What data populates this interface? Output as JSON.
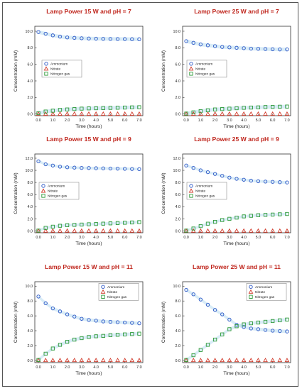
{
  "colors": {
    "title": "#c0271e",
    "ammonium": "#2a56c6",
    "nitrate": "#d13a2a",
    "nitrogen_gas": "#2e9a38",
    "band": "#b9dcf0"
  },
  "chart_data": [
    {
      "type": "scatter",
      "title": "Lamp Power 15 W and pH = 7",
      "xlabel": "Time (hours)",
      "ylabel": "Concentration (mM)",
      "xlim": [
        -0.25,
        7.25
      ],
      "xticks": [
        "0.0",
        "1.0",
        "2.0",
        "3.0",
        "4.0",
        "5.0",
        "6.0",
        "7.0"
      ],
      "ylim": [
        -0.2,
        10.6
      ],
      "yticks": [
        "0.0",
        "2.0",
        "4.0",
        "6.0",
        "8.0",
        "10.0"
      ],
      "legend_position": "upper-left",
      "x": [
        0,
        0.5,
        1,
        1.5,
        2,
        2.5,
        3,
        3.5,
        4,
        4.5,
        5,
        5.5,
        6,
        6.5,
        7
      ],
      "series": [
        {
          "name": "Ammonium",
          "marker": "circle",
          "values": [
            9.9,
            9.7,
            9.5,
            9.35,
            9.25,
            9.2,
            9.15,
            9.12,
            9.1,
            9.08,
            9.07,
            9.06,
            9.05,
            9.04,
            9.03
          ]
        },
        {
          "name": "Nitrate",
          "marker": "triangle",
          "values": [
            0.02,
            0.02,
            0.02,
            0.02,
            0.02,
            0.02,
            0.02,
            0.02,
            0.02,
            0.02,
            0.02,
            0.02,
            0.02,
            0.02,
            0.02
          ]
        },
        {
          "name": "Nitrogen gas",
          "marker": "square",
          "values": [
            0.1,
            0.3,
            0.4,
            0.5,
            0.55,
            0.6,
            0.65,
            0.68,
            0.7,
            0.72,
            0.74,
            0.76,
            0.78,
            0.8,
            0.82
          ]
        }
      ]
    },
    {
      "type": "scatter",
      "title": "Lamp Power 25 W and pH = 7",
      "xlabel": "Time (hours)",
      "ylabel": "Concentration (mM)",
      "xlim": [
        -0.25,
        7.25
      ],
      "xticks": [
        "0.0",
        "1.0",
        "2.0",
        "3.0",
        "4.0",
        "5.0",
        "6.0",
        "7.0"
      ],
      "ylim": [
        -0.2,
        10.6
      ],
      "yticks": [
        "0.0",
        "2.0",
        "4.0",
        "6.0",
        "8.0",
        "10.0"
      ],
      "legend_position": "center-left",
      "x": [
        0,
        0.5,
        1,
        1.5,
        2,
        2.5,
        3,
        3.5,
        4,
        4.5,
        5,
        5.5,
        6,
        6.5,
        7
      ],
      "series": [
        {
          "name": "Ammonium",
          "marker": "circle",
          "values": [
            8.8,
            8.6,
            8.4,
            8.3,
            8.2,
            8.1,
            8.05,
            8.0,
            7.95,
            7.9,
            7.88,
            7.85,
            7.82,
            7.8,
            7.8
          ]
        },
        {
          "name": "Nitrate",
          "marker": "triangle",
          "values": [
            0.02,
            0.02,
            0.02,
            0.02,
            0.02,
            0.02,
            0.02,
            0.02,
            0.02,
            0.02,
            0.02,
            0.02,
            0.02,
            0.02,
            0.02
          ]
        },
        {
          "name": "Nitrogen gas",
          "marker": "square",
          "values": [
            0.05,
            0.2,
            0.35,
            0.45,
            0.55,
            0.6,
            0.65,
            0.7,
            0.75,
            0.78,
            0.8,
            0.84,
            0.86,
            0.88,
            0.9
          ]
        }
      ]
    },
    {
      "type": "scatter",
      "title": "Lamp Power 15 W and pH = 9",
      "xlabel": "Time (hours)",
      "ylabel": "Concentration (mM)",
      "xlim": [
        -0.25,
        7.25
      ],
      "xticks": [
        "0.0",
        "1.0",
        "2.0",
        "3.0",
        "4.0",
        "5.0",
        "6.0",
        "7.0"
      ],
      "ylim": [
        -0.3,
        12.7
      ],
      "yticks": [
        "0.0",
        "2.0",
        "4.0",
        "6.0",
        "8.0",
        "10.0",
        "12.0"
      ],
      "legend_position": "center-left",
      "x": [
        0,
        0.5,
        1,
        1.5,
        2,
        2.5,
        3,
        3.5,
        4,
        4.5,
        5,
        5.5,
        6,
        6.5,
        7
      ],
      "series": [
        {
          "name": "Ammonium",
          "marker": "circle",
          "values": [
            11.5,
            11.0,
            10.8,
            10.6,
            10.5,
            10.45,
            10.4,
            10.38,
            10.35,
            10.33,
            10.3,
            10.28,
            10.25,
            10.22,
            10.2
          ]
        },
        {
          "name": "Nitrate",
          "marker": "triangle",
          "values": [
            0.02,
            0.02,
            0.02,
            0.02,
            0.02,
            0.02,
            0.02,
            0.02,
            0.02,
            0.02,
            0.02,
            0.02,
            0.02,
            0.02,
            0.02
          ]
        },
        {
          "name": "Nitrogen gas",
          "marker": "square",
          "values": [
            0.05,
            0.5,
            0.7,
            0.85,
            0.95,
            1.0,
            1.05,
            1.1,
            1.15,
            1.2,
            1.25,
            1.3,
            1.35,
            1.4,
            1.45
          ]
        }
      ]
    },
    {
      "type": "scatter",
      "title": "Lamp Power 25 W and pH = 9",
      "xlabel": "Time (hours)",
      "ylabel": "Concentration (mM)",
      "xlim": [
        -0.25,
        7.25
      ],
      "xticks": [
        "0.0",
        "1.0",
        "2.0",
        "3.0",
        "4.0",
        "5.0",
        "6.0",
        "7.0"
      ],
      "ylim": [
        -0.3,
        12.7
      ],
      "yticks": [
        "0.0",
        "2.0",
        "4.0",
        "6.0",
        "8.0",
        "10.0",
        "12.0"
      ],
      "legend_position": "center-left",
      "x": [
        0,
        0.5,
        1,
        1.5,
        2,
        2.5,
        3,
        3.5,
        4,
        4.5,
        5,
        5.5,
        6,
        6.5,
        7
      ],
      "series": [
        {
          "name": "Ammonium",
          "marker": "circle",
          "values": [
            10.8,
            10.4,
            10.0,
            9.7,
            9.4,
            9.1,
            8.8,
            8.6,
            8.45,
            8.3,
            8.2,
            8.15,
            8.1,
            8.05,
            8.0
          ]
        },
        {
          "name": "Nitrate",
          "marker": "triangle",
          "values": [
            0.02,
            0.02,
            0.02,
            0.02,
            0.02,
            0.02,
            0.02,
            0.02,
            0.02,
            0.02,
            0.02,
            0.02,
            0.02,
            0.02,
            0.02
          ]
        },
        {
          "name": "Nitrogen gas",
          "marker": "square",
          "values": [
            0.05,
            0.4,
            0.8,
            1.2,
            1.5,
            1.8,
            2.0,
            2.2,
            2.4,
            2.5,
            2.6,
            2.65,
            2.7,
            2.75,
            2.8
          ]
        }
      ]
    },
    {
      "type": "scatter",
      "title": "Lamp Power 15 W and pH = 11",
      "xlabel": "Time (hours)",
      "ylabel": "Concentration (mM)",
      "xlim": [
        -0.25,
        7.25
      ],
      "xticks": [
        "0.0",
        "1.0",
        "2.0",
        "3.0",
        "4.0",
        "5.0",
        "6.0",
        "7.0"
      ],
      "ylim": [
        -0.3,
        10.6
      ],
      "yticks": [
        "0.0",
        "2.0",
        "4.0",
        "6.0",
        "8.0",
        "10.0"
      ],
      "legend_position": "upper-right",
      "x": [
        0,
        0.5,
        1,
        1.5,
        2,
        2.5,
        3,
        3.5,
        4,
        4.5,
        5,
        5.5,
        6,
        6.5,
        7
      ],
      "series": [
        {
          "name": "Ammonium",
          "marker": "circle",
          "values": [
            8.6,
            7.7,
            7.0,
            6.6,
            6.2,
            5.9,
            5.6,
            5.45,
            5.35,
            5.25,
            5.2,
            5.15,
            5.1,
            5.05,
            5.0
          ]
        },
        {
          "name": "Nitrate",
          "marker": "triangle",
          "values": [
            0.02,
            0.02,
            0.02,
            0.02,
            0.02,
            0.02,
            0.02,
            0.02,
            0.02,
            0.02,
            0.02,
            0.02,
            0.02,
            0.02,
            0.02
          ]
        },
        {
          "name": "Nitrogen gas",
          "marker": "square",
          "values": [
            0.05,
            0.9,
            1.6,
            2.1,
            2.5,
            2.8,
            3.0,
            3.15,
            3.25,
            3.3,
            3.4,
            3.45,
            3.5,
            3.55,
            3.6
          ]
        }
      ]
    },
    {
      "type": "scatter",
      "title": "Lamp Power 25 W and pH = 11",
      "xlabel": "Time (hours)",
      "ylabel": "Concentration (mM)",
      "xlim": [
        -0.25,
        7.25
      ],
      "xticks": [
        "0.0",
        "1.0",
        "2.0",
        "3.0",
        "4.0",
        "5.0",
        "6.0",
        "7.0"
      ],
      "ylim": [
        -0.3,
        10.6
      ],
      "yticks": [
        "0.0",
        "2.0",
        "4.0",
        "6.0",
        "8.0",
        "10.0"
      ],
      "legend_position": "upper-right",
      "x": [
        0,
        0.5,
        1,
        1.5,
        2,
        2.5,
        3,
        3.5,
        4,
        4.5,
        5,
        5.5,
        6,
        6.5,
        7
      ],
      "series": [
        {
          "name": "Ammonium",
          "marker": "circle",
          "values": [
            9.5,
            8.9,
            8.2,
            7.5,
            6.8,
            6.2,
            5.5,
            4.8,
            4.5,
            4.3,
            4.2,
            4.1,
            4.0,
            3.95,
            3.9
          ]
        },
        {
          "name": "Nitrate",
          "marker": "triangle",
          "values": [
            0.02,
            0.02,
            0.02,
            0.02,
            0.02,
            0.02,
            0.02,
            0.02,
            0.02,
            0.02,
            0.02,
            0.02,
            0.02,
            0.02,
            0.02
          ]
        },
        {
          "name": "Nitrogen gas",
          "marker": "square",
          "values": [
            0.05,
            0.7,
            1.4,
            2.1,
            2.8,
            3.5,
            4.2,
            4.6,
            4.85,
            5.0,
            5.1,
            5.2,
            5.3,
            5.4,
            5.5
          ]
        }
      ]
    }
  ]
}
